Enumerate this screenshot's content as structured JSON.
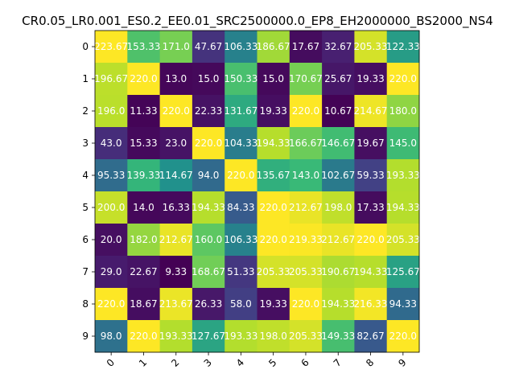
{
  "chart_data": {
    "type": "heatmap",
    "title": "CR0.05_LR0.001_ES0.2_EE0.01_SRC2500000.0_EP8_EH2000000_BS2000_NS4",
    "x_categories": [
      "0",
      "1",
      "2",
      "3",
      "4",
      "5",
      "6",
      "7",
      "8",
      "9"
    ],
    "y_categories": [
      "0",
      "1",
      "2",
      "3",
      "4",
      "5",
      "6",
      "7",
      "8",
      "9"
    ],
    "colormap": "viridis",
    "value_range": [
      9.33,
      220.0
    ],
    "grid": false,
    "values": [
      [
        223.67,
        153.33,
        171.0,
        47.67,
        106.33,
        186.67,
        17.67,
        32.67,
        205.33,
        122.33
      ],
      [
        196.67,
        220.0,
        13.0,
        15.0,
        150.33,
        15.0,
        170.67,
        25.67,
        19.33,
        220.0
      ],
      [
        196.0,
        11.33,
        220.0,
        22.33,
        131.67,
        19.33,
        220.0,
        10.67,
        214.67,
        180.0
      ],
      [
        43.0,
        15.33,
        23.0,
        220.0,
        104.33,
        194.33,
        166.67,
        146.67,
        19.67,
        145.0
      ],
      [
        95.33,
        139.33,
        114.67,
        94.0,
        220.0,
        135.67,
        143.0,
        102.67,
        59.33,
        193.33
      ],
      [
        200.0,
        14.0,
        16.33,
        194.33,
        84.33,
        220.0,
        212.67,
        198.0,
        17.33,
        194.33
      ],
      [
        20.0,
        182.0,
        212.67,
        160.0,
        106.33,
        220.0,
        219.33,
        212.67,
        220.0,
        205.33
      ],
      [
        29.0,
        22.67,
        9.33,
        168.67,
        51.33,
        205.33,
        205.33,
        190.67,
        194.33,
        125.67
      ],
      [
        220.0,
        18.67,
        213.67,
        26.33,
        58.0,
        19.33,
        220.0,
        194.33,
        216.33,
        94.33
      ],
      [
        98.0,
        220.0,
        193.33,
        127.67,
        193.33,
        198.0,
        205.33,
        149.33,
        82.67,
        220.0
      ]
    ],
    "cell_labels": [
      [
        "223.67",
        "153.33",
        "171.0",
        "47.67",
        "106.33",
        "186.67",
        "17.67",
        "32.67",
        "205.33",
        "122.33"
      ],
      [
        "196.67",
        "220.0",
        "13.0",
        "15.0",
        "150.33",
        "15.0",
        "170.67",
        "25.67",
        "19.33",
        "220.0"
      ],
      [
        "196.0",
        "11.33",
        "220.0",
        "22.33",
        "131.67",
        "19.33",
        "220.0",
        "10.67",
        "214.67",
        "180.0"
      ],
      [
        "43.0",
        "15.33",
        "23.0",
        "220.0",
        "104.33",
        "194.33",
        "166.67",
        "146.67",
        "19.67",
        "145.0"
      ],
      [
        "95.33",
        "139.33",
        "114.67",
        "94.0",
        "220.0",
        "135.67",
        "143.0",
        "102.67",
        "59.33",
        "193.33"
      ],
      [
        "200.0",
        "14.0",
        "16.33",
        "194.33",
        "84.33",
        "220.0",
        "212.67",
        "198.0",
        "17.33",
        "194.33"
      ],
      [
        "20.0",
        "182.0",
        "212.67",
        "160.0",
        "106.33",
        "220.0",
        "219.33",
        "212.67",
        "220.0",
        "205.33"
      ],
      [
        "29.0",
        "22.67",
        "9.33",
        "168.67",
        "51.33",
        "205.33",
        "205.33",
        "190.67",
        "194.33",
        "125.67"
      ],
      [
        "220.0",
        "18.67",
        "213.67",
        "26.33",
        "58.0",
        "19.33",
        "220.0",
        "194.33",
        "216.33",
        "94.33"
      ],
      [
        "98.0",
        "220.0",
        "193.33",
        "127.67",
        "193.33",
        "198.0",
        "205.33",
        "149.33",
        "82.67",
        "220.0"
      ]
    ]
  }
}
